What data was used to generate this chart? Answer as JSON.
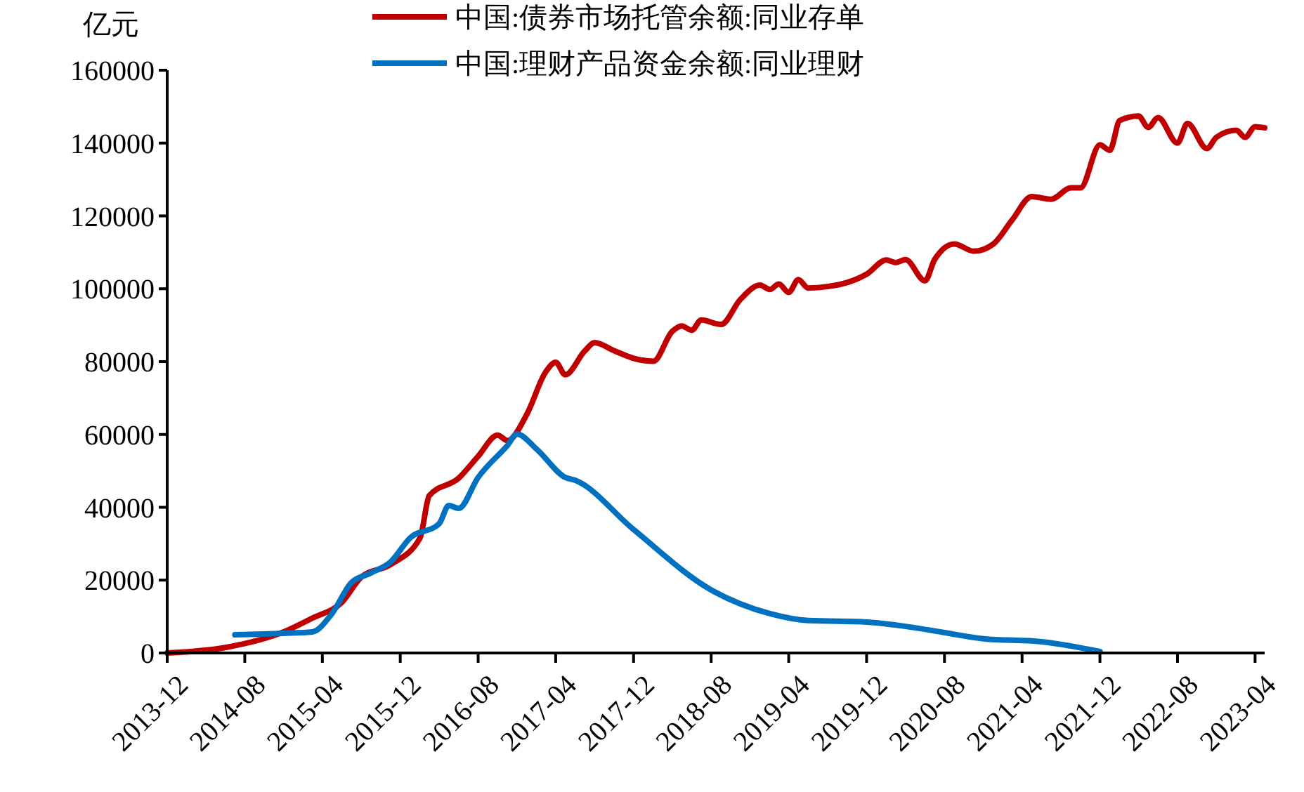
{
  "chart_data": {
    "type": "line",
    "ylabel": "亿元",
    "legend": "top",
    "line_style": "solid",
    "grid": false,
    "xlim": [
      "2013-12",
      "2023-05"
    ],
    "xticks": [
      "2013-12",
      "2014-08",
      "2015-04",
      "2015-12",
      "2016-08",
      "2017-04",
      "2017-12",
      "2018-08",
      "2019-04",
      "2019-12",
      "2020-08",
      "2021-04",
      "2021-12",
      "2022-08",
      "2023-04"
    ],
    "ylim": [
      0,
      160000
    ],
    "yticks": [
      0,
      20000,
      40000,
      60000,
      80000,
      100000,
      120000,
      140000,
      160000
    ],
    "series": [
      {
        "name": "中国:债券市场托管余额:同业存单",
        "color": "#c00000",
        "x": [
          "2013-12",
          "2014-06",
          "2014-12",
          "2015-03",
          "2015-06",
          "2015-08",
          "2015-11",
          "2016-02",
          "2016-03",
          "2016-06",
          "2016-08",
          "2016-10",
          "2016-11",
          "2017-01",
          "2017-03",
          "2017-04",
          "2017-05",
          "2017-07",
          "2017-08",
          "2017-10",
          "2017-12",
          "2018-02",
          "2018-04",
          "2018-05",
          "2018-06",
          "2018-07",
          "2018-09",
          "2018-11",
          "2019-01",
          "2019-02",
          "2019-03",
          "2019-04",
          "2019-05",
          "2019-06",
          "2019-08",
          "2019-10",
          "2019-12",
          "2020-02",
          "2020-03",
          "2020-04",
          "2020-06",
          "2020-07",
          "2020-09",
          "2020-11",
          "2021-01",
          "2021-03",
          "2021-05",
          "2021-07",
          "2021-09",
          "2021-10",
          "2021-12",
          "2022-01",
          "2022-02",
          "2022-04",
          "2022-05",
          "2022-06",
          "2022-08",
          "2022-09",
          "2022-11",
          "2022-12",
          "2023-02",
          "2023-03",
          "2023-04",
          "2023-05"
        ],
        "values": [
          0,
          1500,
          5800,
          9600,
          13900,
          20800,
          24300,
          31600,
          43200,
          48000,
          54000,
          59800,
          58300,
          65600,
          77200,
          79800,
          76400,
          82900,
          85200,
          83000,
          80900,
          80100,
          88300,
          89800,
          88600,
          91400,
          90200,
          97100,
          101000,
          99800,
          101300,
          99000,
          102500,
          100200,
          100600,
          101700,
          104000,
          107900,
          107200,
          108000,
          102200,
          108000,
          112300,
          110300,
          112300,
          118900,
          125300,
          124600,
          127700,
          127700,
          139500,
          138000,
          146200,
          147400,
          144300,
          147000,
          140000,
          145400,
          138500,
          141600,
          143500,
          141600,
          144500,
          144200
        ]
      },
      {
        "name": "中国:理财产品资金余额:同业理财",
        "color": "#0070c0",
        "x": [
          "2014-07",
          "2014-12",
          "2015-03",
          "2015-05",
          "2015-07",
          "2015-09",
          "2015-11",
          "2016-01",
          "2016-04",
          "2016-05",
          "2016-06",
          "2016-08",
          "2016-11",
          "2016-12",
          "2017-02",
          "2017-05",
          "2017-06",
          "2017-12",
          "2018-08",
          "2019-02",
          "2019-06",
          "2019-12",
          "2020-04",
          "2020-08",
          "2020-12",
          "2021-06",
          "2021-12"
        ],
        "values": [
          5000,
          5400,
          5800,
          10800,
          19300,
          22000,
          25000,
          31600,
          35500,
          40500,
          39700,
          48200,
          57000,
          60100,
          55900,
          48200,
          47400,
          33900,
          17300,
          10800,
          8900,
          8500,
          7300,
          5600,
          3900,
          3100,
          400
        ]
      }
    ]
  }
}
